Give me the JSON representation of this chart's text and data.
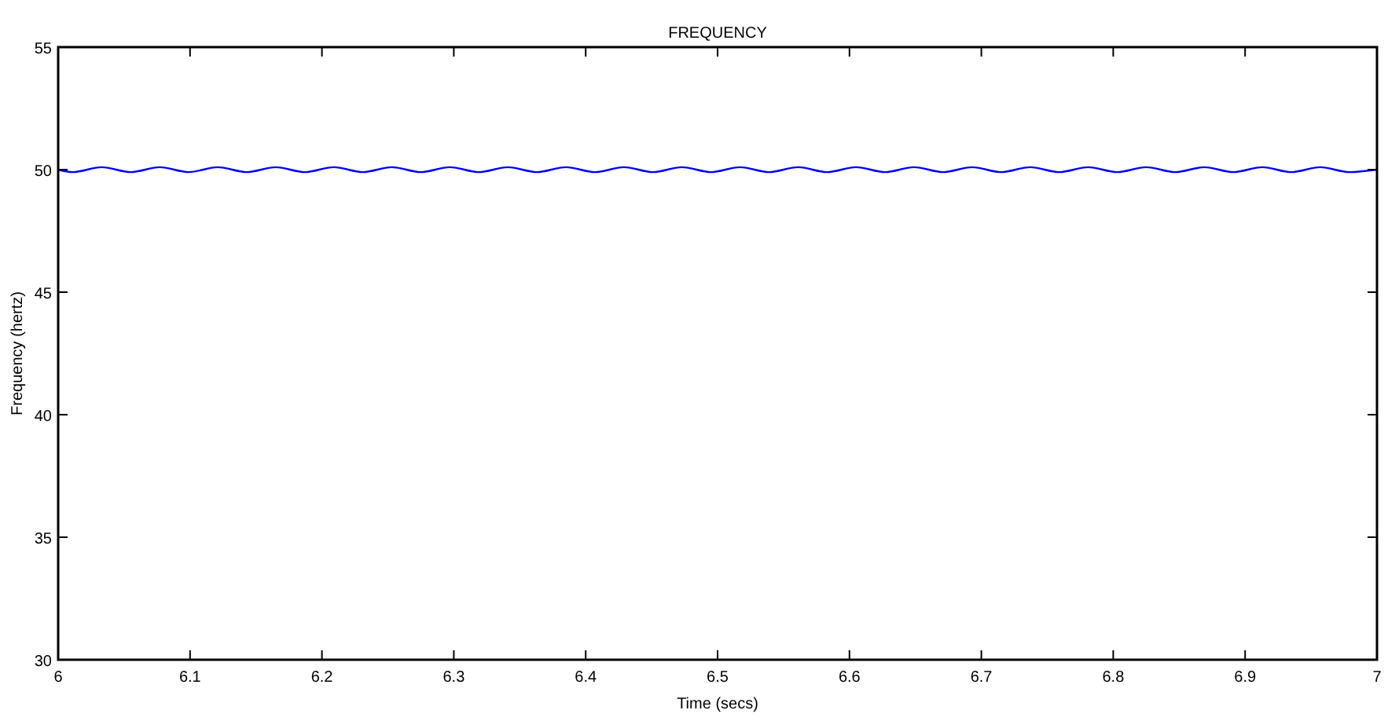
{
  "chart_data": {
    "type": "line",
    "title": "FREQUENCY",
    "xlabel": "Time (secs)",
    "ylabel": "Frequency (hertz)",
    "xlim": [
      6,
      7
    ],
    "xticks": [
      6,
      6.1,
      6.2,
      6.3,
      6.4,
      6.5,
      6.6,
      6.7,
      6.8,
      6.9,
      7
    ],
    "ylim": [
      30,
      55
    ],
    "yticks": [
      30,
      35,
      40,
      45,
      50,
      55
    ],
    "grid": false,
    "marker": "none",
    "line_style": "solid",
    "series": [
      {
        "color": "#0000ff",
        "x": [
          6,
          6.011,
          6.033,
          6.055,
          6.077,
          6.099,
          6.121,
          6.143,
          6.165,
          6.187,
          6.209,
          6.231,
          6.253,
          6.275,
          6.297,
          6.319,
          6.341,
          6.363,
          6.385,
          6.407,
          6.429,
          6.451,
          6.473,
          6.495,
          6.517,
          6.539,
          6.561,
          6.583,
          6.605,
          6.627,
          6.649,
          6.671,
          6.693,
          6.715,
          6.737,
          6.759,
          6.781,
          6.803,
          6.825,
          6.847,
          6.869,
          6.891,
          6.913,
          6.935,
          6.957,
          6.979,
          7
        ],
        "values": [
          50,
          49.9,
          50.1,
          49.9,
          50.1,
          49.9,
          50.1,
          49.9,
          50.1,
          49.9,
          50.1,
          49.9,
          50.1,
          49.9,
          50.1,
          49.9,
          50.1,
          49.9,
          50.1,
          49.9,
          50.1,
          49.9,
          50.1,
          49.9,
          50.1,
          49.9,
          50.1,
          49.9,
          50.1,
          49.9,
          50.1,
          49.9,
          50.1,
          49.9,
          50.1,
          49.9,
          50.1,
          49.9,
          50.1,
          49.9,
          50.1,
          49.9,
          50.1,
          49.9,
          50.1,
          49.9,
          50
        ]
      }
    ]
  }
}
